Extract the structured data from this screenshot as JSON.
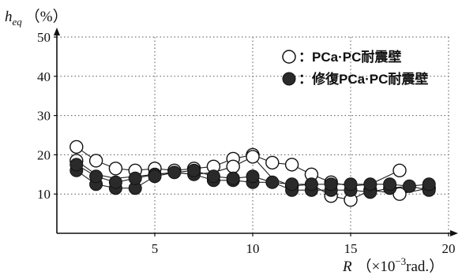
{
  "chart_data": {
    "type": "scatter",
    "ylabel_symbol": "h",
    "ylabel_subscript": "eq",
    "ylabel_unit": "（%）",
    "xlabel_symbol": "R",
    "xlabel_unit_prefix": "（×10",
    "xlabel_unit_exp": "−3",
    "xlabel_unit_suffix": "rad.）",
    "xlim": [
      0,
      20
    ],
    "ylim": [
      0,
      50
    ],
    "xticks": [
      5,
      10,
      15,
      20
    ],
    "yticks": [
      10,
      20,
      30,
      40,
      50
    ],
    "grid": true,
    "legend_position": "top-right",
    "series": [
      {
        "name": "：PCa·PC耐震壁",
        "marker": "open-circle",
        "color": "#000000",
        "points": [
          [
            1.0,
            18.5
          ],
          [
            1.0,
            22.0
          ],
          [
            2.0,
            18.5
          ],
          [
            3.0,
            16.5
          ],
          [
            4.0,
            16.0
          ],
          [
            5.0,
            16.5
          ],
          [
            6.0,
            16.0
          ],
          [
            7.0,
            16.5
          ],
          [
            8.0,
            17.0
          ],
          [
            9.0,
            19.0
          ],
          [
            9.0,
            17.0
          ],
          [
            10.0,
            20.0
          ],
          [
            10.0,
            19.5
          ],
          [
            11.0,
            18.0
          ],
          [
            12.0,
            17.5
          ],
          [
            12.0,
            12.0
          ],
          [
            13.0,
            15.0
          ],
          [
            14.0,
            13.0
          ],
          [
            14.0,
            9.5
          ],
          [
            15.0,
            8.5
          ],
          [
            16.0,
            11.0
          ],
          [
            17.5,
            16.0
          ],
          [
            17.5,
            10.0
          ],
          [
            19.0,
            11.5
          ]
        ],
        "lines": [
          [
            [
              1.0,
              22.0
            ],
            [
              2.0,
              18.5
            ],
            [
              3.0,
              16.5
            ],
            [
              4.0,
              16.0
            ],
            [
              5.0,
              16.5
            ],
            [
              6.0,
              16.0
            ],
            [
              7.0,
              16.5
            ],
            [
              8.0,
              17.0
            ],
            [
              9.0,
              19.0
            ],
            [
              10.0,
              20.0
            ],
            [
              11.0,
              18.0
            ],
            [
              12.0,
              17.5
            ],
            [
              13.0,
              15.0
            ],
            [
              14.0,
              13.0
            ],
            [
              15.0,
              12.0
            ],
            [
              16.0,
              12.5
            ],
            [
              17.5,
              16.0
            ]
          ],
          [
            [
              1.0,
              18.5
            ],
            [
              2.0,
              15.0
            ],
            [
              3.0,
              14.0
            ],
            [
              4.0,
              14.5
            ],
            [
              5.0,
              15.0
            ],
            [
              6.0,
              15.5
            ],
            [
              7.0,
              15.0
            ],
            [
              8.0,
              15.5
            ],
            [
              9.0,
              17.0
            ],
            [
              10.0,
              19.5
            ],
            [
              11.0,
              14.0
            ],
            [
              12.0,
              12.0
            ],
            [
              13.0,
              12.5
            ],
            [
              14.0,
              9.5
            ],
            [
              15.0,
              8.5
            ],
            [
              16.0,
              11.0
            ],
            [
              17.5,
              10.0
            ],
            [
              19.0,
              11.5
            ]
          ]
        ]
      },
      {
        "name": "：修復PCa·PC耐震壁",
        "marker": "filled-circle",
        "color": "#2a2a2a",
        "points": [
          [
            1.0,
            16.0
          ],
          [
            1.0,
            17.5
          ],
          [
            2.0,
            12.5
          ],
          [
            2.0,
            14.5
          ],
          [
            3.0,
            11.5
          ],
          [
            3.0,
            13.0
          ],
          [
            4.0,
            11.5
          ],
          [
            4.0,
            14.0
          ],
          [
            5.0,
            15.0
          ],
          [
            5.0,
            14.5
          ],
          [
            6.0,
            15.5
          ],
          [
            7.0,
            15.0
          ],
          [
            7.0,
            16.0
          ],
          [
            8.0,
            13.5
          ],
          [
            8.0,
            14.5
          ],
          [
            9.0,
            13.5
          ],
          [
            9.0,
            14.0
          ],
          [
            10.0,
            13.0
          ],
          [
            10.0,
            14.5
          ],
          [
            11.0,
            13.0
          ],
          [
            12.0,
            11.0
          ],
          [
            12.0,
            12.5
          ],
          [
            13.0,
            11.0
          ],
          [
            13.0,
            12.5
          ],
          [
            14.0,
            11.0
          ],
          [
            14.0,
            12.5
          ],
          [
            15.0,
            11.0
          ],
          [
            15.0,
            12.5
          ],
          [
            16.0,
            10.5
          ],
          [
            16.0,
            12.5
          ],
          [
            17.0,
            11.5
          ],
          [
            17.0,
            12.5
          ],
          [
            18.0,
            12.0
          ],
          [
            19.0,
            11.0
          ],
          [
            19.0,
            12.5
          ]
        ],
        "lines": [
          [
            [
              1.0,
              17.5
            ],
            [
              2.0,
              14.5
            ],
            [
              3.0,
              13.0
            ],
            [
              4.0,
              14.0
            ],
            [
              5.0,
              15.0
            ],
            [
              6.0,
              15.5
            ],
            [
              7.0,
              16.0
            ],
            [
              8.0,
              14.5
            ],
            [
              9.0,
              14.0
            ],
            [
              10.0,
              14.5
            ],
            [
              11.0,
              13.0
            ],
            [
              12.0,
              12.5
            ],
            [
              13.0,
              12.5
            ],
            [
              14.0,
              12.5
            ],
            [
              15.0,
              12.5
            ],
            [
              16.0,
              12.5
            ],
            [
              17.0,
              12.5
            ],
            [
              18.0,
              12.0
            ],
            [
              19.0,
              12.5
            ]
          ],
          [
            [
              1.0,
              16.0
            ],
            [
              2.0,
              12.5
            ],
            [
              3.0,
              11.5
            ],
            [
              4.0,
              11.5
            ],
            [
              5.0,
              14.5
            ],
            [
              6.0,
              15.5
            ],
            [
              7.0,
              15.0
            ],
            [
              8.0,
              13.5
            ],
            [
              9.0,
              13.5
            ],
            [
              10.0,
              13.0
            ],
            [
              11.0,
              13.0
            ],
            [
              12.0,
              11.0
            ],
            [
              13.0,
              11.0
            ],
            [
              14.0,
              11.0
            ],
            [
              15.0,
              11.0
            ],
            [
              16.0,
              10.5
            ],
            [
              17.0,
              11.5
            ],
            [
              18.0,
              12.0
            ],
            [
              19.0,
              11.0
            ]
          ]
        ]
      }
    ]
  }
}
